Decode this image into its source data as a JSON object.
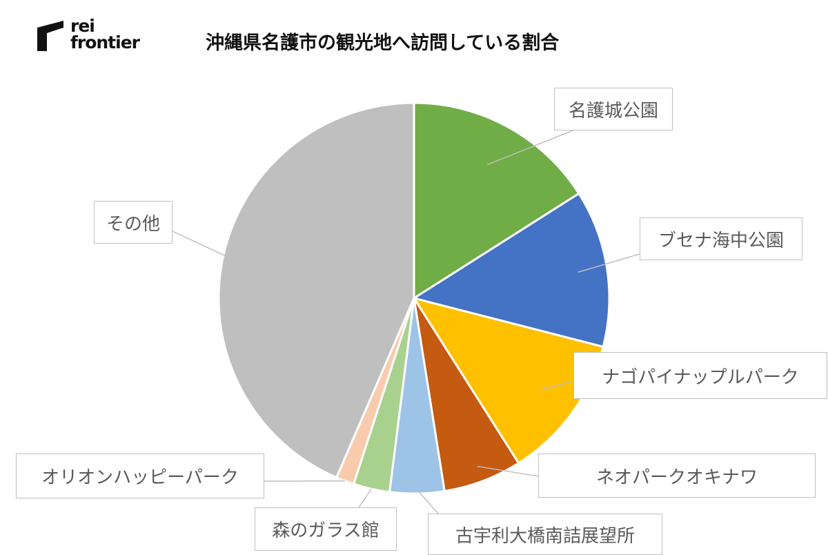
{
  "logo": {
    "line1": "rei",
    "line2": "frontier"
  },
  "chart_data": {
    "type": "pie",
    "title": "沖縄県名護市の観光地へ訪問している割合",
    "categories": [
      "名護城公園",
      "ブセナ海中公園",
      "ナゴパイナップルパーク",
      "ネオパークオキナワ",
      "古宇利大橋南詰展望所",
      "森のガラス館",
      "オリオンハッピーパーク",
      "その他"
    ],
    "values": [
      16.0,
      13.0,
      12.0,
      6.5,
      4.5,
      3.0,
      1.5,
      43.5
    ],
    "colors": [
      "#70ad47",
      "#4472c4",
      "#ffc000",
      "#c55a11",
      "#9dc3e6",
      "#a9d18e",
      "#f8cbad",
      "#bfbfbf"
    ],
    "legend": "none",
    "labels": "callouts"
  }
}
